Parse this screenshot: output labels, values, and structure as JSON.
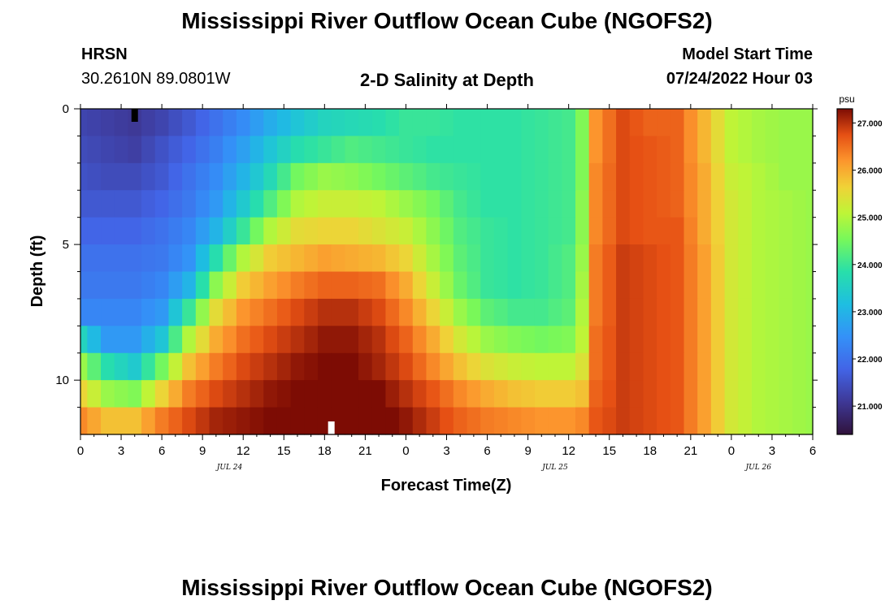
{
  "page": {
    "title": "Mississippi River Outflow Ocean Cube (NGOFS2)",
    "title_repeat": "Mississippi River Outflow Ocean Cube (NGOFS2)",
    "station_name": "HRSN",
    "station_coords": "30.2610N  89.0801W",
    "plot_subtitle": "2-D Salinity at Depth",
    "model_start_label": "Model Start Time",
    "model_start_value": "07/24/2022 Hour 03"
  },
  "chart_data": {
    "type": "heatmap",
    "xlabel": "Forecast Time(Z)",
    "ylabel": "Depth (ft)",
    "colorbar_unit": "psu",
    "x_range": [
      0,
      54
    ],
    "y_range": [
      0,
      12
    ],
    "x_tick_labels": [
      "0",
      "3",
      "6",
      "9",
      "12",
      "15",
      "18",
      "21",
      "0",
      "3",
      "6",
      "9",
      "12",
      "15",
      "18",
      "21",
      "0",
      "3",
      "6"
    ],
    "y_tick_labels": [
      "0",
      "5",
      "10"
    ],
    "y_tick_values": [
      0,
      5,
      10
    ],
    "date_labels": [
      {
        "text": "JUL 24",
        "hour": 11
      },
      {
        "text": "JUL 25",
        "hour": 35
      },
      {
        "text": "JUL 26",
        "hour": 50
      }
    ],
    "colorbar": {
      "range": [
        20.4,
        27.3
      ],
      "ticks": [
        27,
        26,
        25,
        24,
        23,
        22,
        21
      ],
      "tick_labels": [
        "27.000",
        "26.000",
        "25.000",
        "24.000",
        "23.000",
        "22.000",
        "21.000"
      ]
    },
    "depth_levels": [
      0.5,
      1.5,
      2.5,
      3.5,
      4.5,
      5.5,
      6.5,
      7.5,
      8.5,
      9.5,
      10.5,
      11.5
    ],
    "hours": [
      0,
      1,
      2,
      3,
      4,
      5,
      6,
      7,
      8,
      9,
      10,
      11,
      12,
      13,
      14,
      15,
      16,
      17,
      18,
      19,
      20,
      21,
      22,
      23,
      24,
      25,
      26,
      27,
      28,
      29,
      30,
      31,
      32,
      33,
      34,
      35,
      36,
      37,
      38,
      39,
      40,
      41,
      42,
      43,
      44,
      45,
      46,
      47,
      48,
      49,
      50,
      51,
      52,
      53,
      54
    ],
    "salinity_anchor_hours": [
      0,
      2,
      4,
      6,
      8,
      10,
      12,
      14,
      16,
      18,
      20,
      22,
      24,
      26,
      28,
      30,
      32,
      34,
      36,
      37,
      38,
      40,
      42,
      44,
      46,
      48,
      50,
      52,
      54
    ],
    "salinity_anchor_rows": [
      [
        21.3,
        21.2,
        21.1,
        21.3,
        21.6,
        22.0,
        22.4,
        22.9,
        23.3,
        23.6,
        23.7,
        23.8,
        24.0,
        24.0,
        23.9,
        23.9,
        23.9,
        24.0,
        24.1,
        24.6,
        26.2,
        26.8,
        26.6,
        26.6,
        25.9,
        25.1,
        24.9,
        24.8,
        24.8
      ],
      [
        21.4,
        21.3,
        21.2,
        21.5,
        21.8,
        22.2,
        22.7,
        23.3,
        23.8,
        24.0,
        24.2,
        24.1,
        24.0,
        23.9,
        23.9,
        23.9,
        23.9,
        24.0,
        24.1,
        24.6,
        26.2,
        26.8,
        26.7,
        26.6,
        25.9,
        25.1,
        24.9,
        24.8,
        24.8
      ],
      [
        21.5,
        21.4,
        21.4,
        21.6,
        22.0,
        22.4,
        23.0,
        23.7,
        24.5,
        24.8,
        24.7,
        24.5,
        24.3,
        24.1,
        24.0,
        23.9,
        23.9,
        24.0,
        24.1,
        24.6,
        26.3,
        26.8,
        26.7,
        26.6,
        26.0,
        25.2,
        25.0,
        24.8,
        24.8
      ],
      [
        21.6,
        21.6,
        21.6,
        21.8,
        22.1,
        22.6,
        23.4,
        24.2,
        25.0,
        25.2,
        25.2,
        25.1,
        24.8,
        24.5,
        24.1,
        23.9,
        23.9,
        24.0,
        24.1,
        24.7,
        26.3,
        26.8,
        26.7,
        26.6,
        26.0,
        25.3,
        25.0,
        24.9,
        24.8
      ],
      [
        21.8,
        21.8,
        21.8,
        22.0,
        22.3,
        23.0,
        24.0,
        25.0,
        25.5,
        25.6,
        25.6,
        25.4,
        25.2,
        24.7,
        24.2,
        24.0,
        23.9,
        24.0,
        24.1,
        24.7,
        26.3,
        26.8,
        26.7,
        26.7,
        26.0,
        25.3,
        25.0,
        24.9,
        24.8
      ],
      [
        22.0,
        22.0,
        22.0,
        22.1,
        22.5,
        23.8,
        25.0,
        25.7,
        25.9,
        26.1,
        26.0,
        25.9,
        25.6,
        24.9,
        24.3,
        24.0,
        23.9,
        24.0,
        24.2,
        24.8,
        26.4,
        26.9,
        26.8,
        26.7,
        26.1,
        25.3,
        25.0,
        24.9,
        24.8
      ],
      [
        22.1,
        22.1,
        22.1,
        22.3,
        23.0,
        24.7,
        25.7,
        26.1,
        26.4,
        26.6,
        26.6,
        26.5,
        26.0,
        25.2,
        24.4,
        24.0,
        23.9,
        24.0,
        24.2,
        24.9,
        26.4,
        26.9,
        26.8,
        26.7,
        26.1,
        25.3,
        25.0,
        24.9,
        24.8
      ],
      [
        22.3,
        22.3,
        22.3,
        22.6,
        24.0,
        25.5,
        26.2,
        26.5,
        26.8,
        27.0,
        27.0,
        26.8,
        26.3,
        25.6,
        24.8,
        24.3,
        24.1,
        24.1,
        24.3,
        25.0,
        26.4,
        26.9,
        26.8,
        26.7,
        26.1,
        25.3,
        25.0,
        24.9,
        24.8
      ],
      [
        23.6,
        22.6,
        22.6,
        23.3,
        25.0,
        26.0,
        26.5,
        26.8,
        27.0,
        27.2,
        27.2,
        27.0,
        26.6,
        26.0,
        25.3,
        24.8,
        24.6,
        24.5,
        24.6,
        25.1,
        26.5,
        26.9,
        26.8,
        26.7,
        26.1,
        25.3,
        25.0,
        24.9,
        24.8
      ],
      [
        24.8,
        23.8,
        23.4,
        24.5,
        25.8,
        26.4,
        26.8,
        27.0,
        27.2,
        27.3,
        27.3,
        27.1,
        26.8,
        26.3,
        25.8,
        25.4,
        25.2,
        25.1,
        25.1,
        25.4,
        26.5,
        26.9,
        26.8,
        26.7,
        26.1,
        25.3,
        25.0,
        24.9,
        24.8
      ],
      [
        25.6,
        24.8,
        24.6,
        25.6,
        26.4,
        26.8,
        27.0,
        27.2,
        27.3,
        27.4,
        27.4,
        27.3,
        27.0,
        26.7,
        26.3,
        26.0,
        25.8,
        25.7,
        25.7,
        25.8,
        26.6,
        26.9,
        26.8,
        26.7,
        26.1,
        25.3,
        25.0,
        24.9,
        24.8
      ],
      [
        26.3,
        25.8,
        25.8,
        26.4,
        26.8,
        27.1,
        27.2,
        27.3,
        27.4,
        27.5,
        27.5,
        27.4,
        27.2,
        26.9,
        26.6,
        26.4,
        26.3,
        26.2,
        26.2,
        26.3,
        26.7,
        26.9,
        26.8,
        26.7,
        26.1,
        25.3,
        25.0,
        24.9,
        24.8
      ]
    ],
    "markers": [
      {
        "hour": 4,
        "depth": 0,
        "color": "#000000"
      },
      {
        "hour": 18.5,
        "depth": 12,
        "color": "#ffffff"
      }
    ]
  }
}
